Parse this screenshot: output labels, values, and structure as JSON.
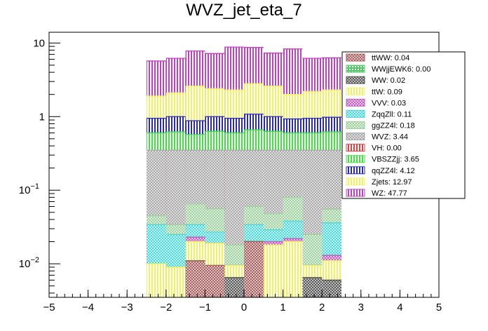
{
  "chart_data": {
    "type": "bar",
    "stacked": true,
    "title": "WVZ_jet_eta_7",
    "xlabel": "",
    "ylabel": "",
    "xlim": [
      -5,
      5
    ],
    "ylog": true,
    "ylim": [
      0.0035,
      14
    ],
    "bin_edges": [
      -2.5,
      -2.0,
      -1.5,
      -1.0,
      -0.5,
      0.0,
      0.5,
      1.0,
      1.5,
      2.0,
      2.5
    ],
    "x_ticks": [
      -5,
      -4,
      -3,
      -2,
      -1,
      0,
      1,
      2,
      3,
      4,
      5
    ],
    "x_tick_labels": [
      "−5",
      "−4",
      "−3",
      "−2",
      "−1",
      "0",
      "1",
      "2",
      "3",
      "4",
      "5"
    ],
    "y_tick_labels": [
      {
        "value": 10,
        "base": "10",
        "exp": ""
      },
      {
        "value": 1,
        "base": "1",
        "exp": ""
      },
      {
        "value": 0.1,
        "base": "10",
        "exp": "−1"
      },
      {
        "value": 0.01,
        "base": "10",
        "exp": "−2"
      }
    ],
    "series": [
      {
        "name": "ttWW",
        "value": "0.04",
        "color": "#a65d5d",
        "pattern": "cross",
        "cumulative": [
          0.0035,
          0.0035,
          0.011,
          0.0095,
          0.0035,
          0.02,
          0.0035,
          0.0035,
          0.0035,
          0.0035
        ]
      },
      {
        "name": "WWjjEWK6",
        "value": "0.00",
        "color": "#56c76a",
        "pattern": "grid",
        "cumulative": [
          0.0035,
          0.0035,
          0.011,
          0.0095,
          0.0035,
          0.02,
          0.0035,
          0.0035,
          0.0035,
          0.0035
        ]
      },
      {
        "name": "WW",
        "value": "0.02",
        "color": "#555555",
        "pattern": "cross",
        "cumulative": [
          0.0035,
          0.0035,
          0.011,
          0.0095,
          0.0065,
          0.02,
          0.0035,
          0.0035,
          0.0065,
          0.006
        ]
      },
      {
        "name": "ttW",
        "value": "0.09",
        "color": "#f0f060",
        "pattern": "vlines",
        "cumulative": [
          0.01,
          0.009,
          0.02,
          0.019,
          0.0095,
          0.02,
          0.018,
          0.02,
          0.0095,
          0.011
        ]
      },
      {
        "name": "VVV",
        "value": "0.03",
        "color": "#c060c0",
        "pattern": "cross",
        "cumulative": [
          0.01,
          0.009,
          0.023,
          0.019,
          0.0095,
          0.02,
          0.02,
          0.022,
          0.0095,
          0.013
        ]
      },
      {
        "name": "ZqqZll",
        "value": "0.11",
        "color": "#50d8d8",
        "pattern": "cross",
        "cumulative": [
          0.034,
          0.025,
          0.034,
          0.027,
          0.0095,
          0.034,
          0.029,
          0.038,
          0.0095,
          0.036
        ]
      },
      {
        "name": "ggZZ4l",
        "value": "0.18",
        "color": "#a0d0a0",
        "pattern": "cross",
        "cumulative": [
          0.045,
          0.034,
          0.065,
          0.056,
          0.018,
          0.06,
          0.048,
          0.08,
          0.025,
          0.055
        ]
      },
      {
        "name": "WVZ",
        "value": "3.44",
        "color": "#a8a8a8",
        "pattern": "cross",
        "cumulative": [
          0.35,
          0.35,
          0.35,
          0.35,
          0.35,
          0.35,
          0.35,
          0.35,
          0.35,
          0.35
        ]
      },
      {
        "name": "VH",
        "value": "0.00",
        "color": "#e04040",
        "pattern": "vlines",
        "cumulative": [
          0.35,
          0.35,
          0.35,
          0.35,
          0.35,
          0.35,
          0.35,
          0.35,
          0.35,
          0.35
        ]
      },
      {
        "name": "VBSZZjj",
        "value": "3.65",
        "color": "#40e040",
        "pattern": "vlines",
        "cumulative": [
          0.6,
          0.62,
          0.57,
          0.63,
          0.6,
          0.66,
          0.63,
          0.6,
          0.6,
          0.62
        ]
      },
      {
        "name": "qqZZ4l",
        "value": "4.12",
        "color": "#2a2ab8",
        "pattern": "vlines",
        "cumulative": [
          0.95,
          1.0,
          0.88,
          1.0,
          0.95,
          1.08,
          1.0,
          0.93,
          0.95,
          0.98
        ]
      },
      {
        "name": "Zjets",
        "value": "12.97",
        "color": "#f0f060",
        "pattern": "vlines",
        "cumulative": [
          1.9,
          2.1,
          2.6,
          2.4,
          2.3,
          2.8,
          2.6,
          2.0,
          2.2,
          2.3
        ]
      },
      {
        "name": "WZ",
        "value": "47.77",
        "color": "#c040c0",
        "pattern": "vlines",
        "cumulative": [
          5.7,
          6.2,
          7.8,
          7.2,
          8.8,
          8.7,
          7.3,
          8.3,
          6.2,
          6.3
        ]
      }
    ]
  }
}
